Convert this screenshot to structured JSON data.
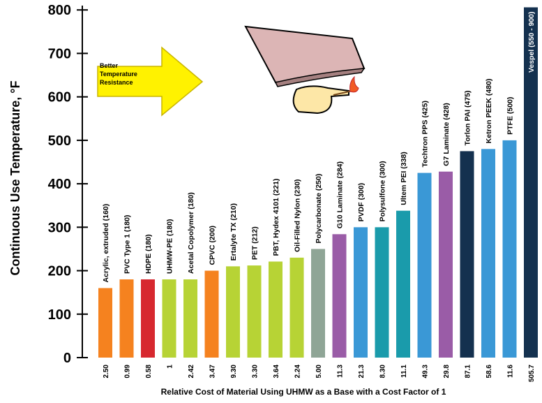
{
  "chart_data": {
    "type": "bar",
    "ylabel": "Continuous Use Temperature, °F",
    "xlabel": "Relative Cost of Material Using UHMW as a Base with a Cost Factor of 1",
    "annotation": [
      "Better",
      "Temperature",
      "Resistance"
    ],
    "categories": [
      "2.50",
      "0.99",
      "0.58",
      "1",
      "2.42",
      "3.47",
      "9.30",
      "3.30",
      "3.64",
      "2.24",
      "5.00",
      "11.3",
      "21.3",
      "8.30",
      "11.1",
      "49.3",
      "29.8",
      "87.1",
      "58.6",
      "11.6",
      "505.7"
    ],
    "labels": [
      "Acrylic, extruded  (160)",
      "PVC Type 1  (180)",
      "HDPE  (180)",
      "UHMW-PE  (180)",
      "Acetal Copolymer  (180)",
      "CPVC  (200)",
      "Ertalyte TX  (210)",
      "PET  (212)",
      "PBT, Hydex 4101  (221)",
      "Oil-Filled Nylon  (230)",
      "Polycarbonate  (250)",
      "G10 Laminate  (284)",
      "PVDF  (300)",
      "Polysulfone  (300)",
      "Ultem PEI  (338)",
      "Techtron PPS  (425)",
      "G7 Laminate  (428)",
      "Torlon PAI  (475)",
      "Ketron PEEK  (480)",
      "PTFE  (500)",
      "Vespel  (550 - 900)"
    ],
    "values": [
      160,
      180,
      180,
      180,
      180,
      200,
      210,
      212,
      221,
      230,
      250,
      284,
      300,
      300,
      338,
      425,
      428,
      475,
      480,
      500,
      806
    ],
    "colors": [
      "#f5821f",
      "#f5821f",
      "#d7282f",
      "#b7d335",
      "#b7d335",
      "#f5821f",
      "#b7d335",
      "#b7d335",
      "#b7d335",
      "#b7d335",
      "#8fa596",
      "#9a5ca7",
      "#3a98d6",
      "#1a9bab",
      "#1a9bab",
      "#3a98d6",
      "#9a5ca7",
      "#14314f",
      "#3a98d6",
      "#3a98d6",
      "#14314f"
    ],
    "ylim": [
      0,
      810
    ],
    "yticks": [
      0,
      100,
      200,
      300,
      400,
      500,
      600,
      700,
      800
    ]
  }
}
